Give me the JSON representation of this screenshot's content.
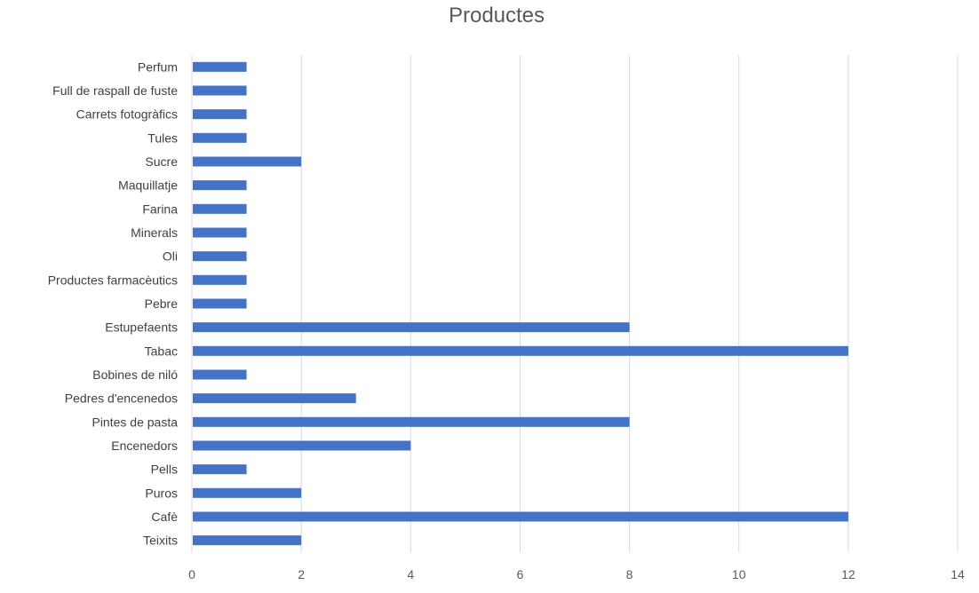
{
  "chart_data": {
    "type": "bar",
    "orientation": "horizontal",
    "title": "Productes",
    "xlabel": "",
    "ylabel": "",
    "categories": [
      "Teixits",
      "Cafè",
      "Puros",
      "Pells",
      "Encenedors",
      "Pintes de pasta",
      "Pedres d'encenedos",
      "Bobines de niló",
      "Tabac",
      "Estupefaents",
      "Pebre",
      "Productes farmacèutics",
      "Oli",
      "Minerals",
      "Farina",
      "Maquillatje",
      "Sucre",
      "Tules",
      "Carrets fotogràfics",
      "Full de raspall de fuste",
      "Perfum"
    ],
    "values": [
      2,
      12,
      2,
      1,
      4,
      8,
      3,
      1,
      12,
      8,
      1,
      1,
      1,
      1,
      1,
      1,
      2,
      1,
      1,
      1,
      1
    ],
    "xlim": [
      0,
      14
    ],
    "xticks": [
      0,
      2,
      4,
      6,
      8,
      10,
      12,
      14
    ],
    "grid": "vertical",
    "legend": "none",
    "bar_color": "#4472C4",
    "grid_color": "#D9D9D9",
    "label_color": "#404040",
    "tick_color": "#595959"
  }
}
